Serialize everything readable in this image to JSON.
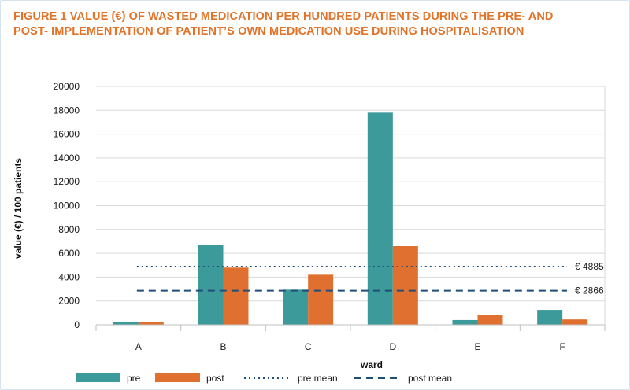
{
  "title_lines": [
    "FIGURE 1 VALUE (€) OF WASTED MEDICATION PER HUNDRED PATIENTS DURING THE PRE- AND",
    "POST- IMPLEMENTATION OF PATIENT’S OWN MEDICATION USE DURING HOSPITALISATION"
  ],
  "colors": {
    "pre": "#3c9a9a",
    "post": "#e07030",
    "pre_mean": "#1f4e79",
    "post_mean": "#1f4e79",
    "title": "#e27328",
    "grid": "#d9d9d9"
  },
  "chart_data": {
    "type": "bar",
    "xlabel": "ward",
    "ylabel": "value (€) / 100 patients",
    "ylim": [
      0,
      20000
    ],
    "yticks": [
      0,
      2000,
      4000,
      6000,
      8000,
      10000,
      12000,
      14000,
      16000,
      18000,
      20000
    ],
    "categories": [
      "A",
      "B",
      "C",
      "D",
      "E",
      "F"
    ],
    "series": [
      {
        "name": "pre",
        "values": [
          200,
          6700,
          2950,
          17800,
          400,
          1250
        ]
      },
      {
        "name": "post",
        "values": [
          200,
          4800,
          4200,
          6600,
          800,
          450
        ]
      }
    ],
    "reference_lines": [
      {
        "name": "pre mean",
        "value": 4885,
        "label": "€ 4885",
        "style": "dotted"
      },
      {
        "name": "post mean",
        "value": 2866,
        "label": "€ 2866",
        "style": "dashed"
      }
    ],
    "grid": true,
    "legend_position": "bottom"
  }
}
